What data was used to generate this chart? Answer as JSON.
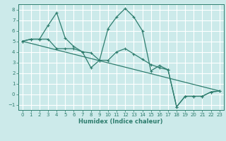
{
  "xlabel": "Humidex (Indice chaleur)",
  "background_color": "#cceaea",
  "grid_color": "#ffffff",
  "line_color": "#2e7d6e",
  "xlim": [
    -0.5,
    23.5
  ],
  "ylim": [
    -1.5,
    8.5
  ],
  "xticks": [
    0,
    1,
    2,
    3,
    4,
    5,
    6,
    7,
    8,
    9,
    10,
    11,
    12,
    13,
    14,
    15,
    16,
    17,
    18,
    19,
    20,
    21,
    22,
    23
  ],
  "yticks": [
    -1,
    0,
    1,
    2,
    3,
    4,
    5,
    6,
    7,
    8
  ],
  "line1_x": [
    0,
    1,
    2,
    3,
    4,
    5,
    6,
    7,
    8,
    9,
    10,
    11,
    12,
    13,
    14,
    15,
    16,
    17,
    18,
    19,
    20,
    21,
    22,
    23
  ],
  "line1_y": [
    5.0,
    5.2,
    5.2,
    6.5,
    7.7,
    5.3,
    4.5,
    4.0,
    2.5,
    3.2,
    6.2,
    7.3,
    8.1,
    7.3,
    6.0,
    2.2,
    2.7,
    2.3,
    -1.2,
    -0.2,
    -0.2,
    -0.2,
    0.2,
    0.3
  ],
  "line2_x": [
    0,
    1,
    2,
    3,
    4,
    5,
    6,
    7,
    8,
    9,
    10,
    11,
    12,
    13,
    14,
    15,
    16,
    17,
    18,
    19,
    20,
    21,
    22,
    23
  ],
  "line2_y": [
    5.0,
    5.2,
    5.2,
    5.2,
    4.3,
    4.3,
    4.3,
    4.0,
    3.9,
    3.2,
    3.2,
    4.0,
    4.3,
    3.8,
    3.3,
    2.8,
    2.5,
    2.3,
    -1.2,
    -0.2,
    -0.2,
    -0.2,
    0.2,
    0.3
  ],
  "line3_x": [
    0,
    23
  ],
  "line3_y": [
    5.0,
    0.3
  ]
}
